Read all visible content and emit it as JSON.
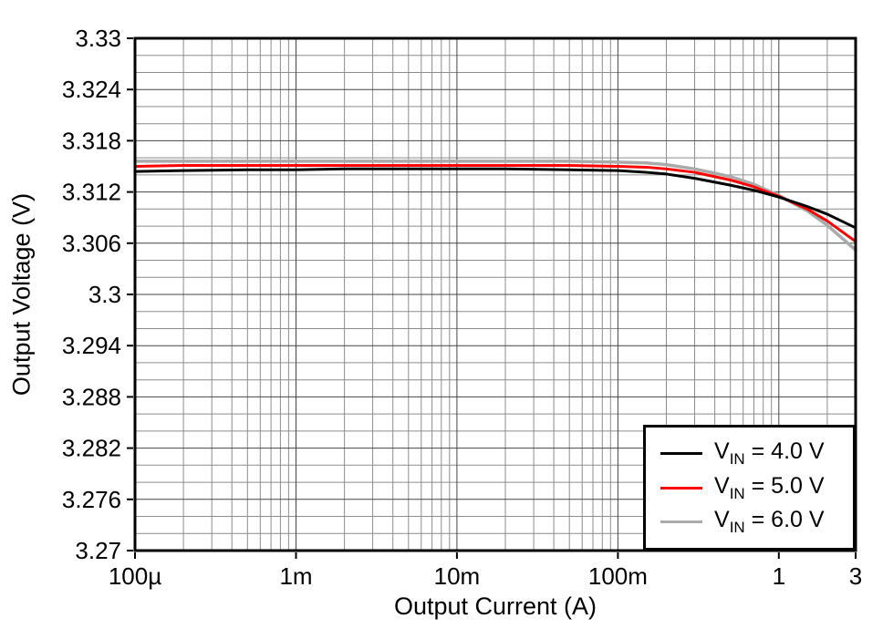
{
  "chart_data": {
    "type": "line",
    "xlabel": "Output Current (A)",
    "ylabel": "Output Voltage (V)",
    "x_scale": "log",
    "xlim": [
      0.0001,
      3
    ],
    "ylim": [
      3.27,
      3.33
    ],
    "grid": true,
    "legend_position": "bottom-right",
    "x_ticks": [
      0.0001,
      0.001,
      0.01,
      0.1,
      1,
      3
    ],
    "x_tick_labels": [
      "100µ",
      "1m",
      "10m",
      "100m",
      "1",
      "3"
    ],
    "y_ticks": [
      3.27,
      3.276,
      3.282,
      3.288,
      3.294,
      3.3,
      3.306,
      3.312,
      3.318,
      3.324,
      3.33
    ],
    "y_tick_labels": [
      "3.27",
      "3.276",
      "3.282",
      "3.288",
      "3.294",
      "3.3",
      "3.306",
      "3.312",
      "3.318",
      "3.324",
      "3.33"
    ],
    "y_minor_step": 0.002,
    "x": [
      0.0001,
      0.0002,
      0.0005,
      0.001,
      0.002,
      0.005,
      0.01,
      0.02,
      0.05,
      0.1,
      0.15,
      0.2,
      0.3,
      0.5,
      0.7,
      1.0,
      1.5,
      2.0,
      3.0
    ],
    "series": [
      {
        "name": "VIN = 4.0 V",
        "label_main": "V",
        "label_sub": "IN",
        "label_rest": " = 4.0 V",
        "color": "#000000",
        "width": 3,
        "y": [
          3.3144,
          3.3145,
          3.3146,
          3.3146,
          3.3147,
          3.3147,
          3.3147,
          3.3147,
          3.3146,
          3.3145,
          3.3143,
          3.3141,
          3.3136,
          3.3128,
          3.3122,
          3.3114,
          3.3103,
          3.3094,
          3.3078
        ]
      },
      {
        "name": "VIN = 5.0 V",
        "label_main": "V",
        "label_sub": "IN",
        "label_rest": " = 5.0 V",
        "color": "#ff0000",
        "width": 3,
        "y": [
          3.315,
          3.3151,
          3.3151,
          3.3151,
          3.3151,
          3.3151,
          3.3151,
          3.3151,
          3.3151,
          3.315,
          3.3149,
          3.3147,
          3.3143,
          3.3134,
          3.3126,
          3.3115,
          3.31,
          3.3086,
          3.3062
        ]
      },
      {
        "name": "VIN = 6.0 V",
        "label_main": "V",
        "label_sub": "IN",
        "label_rest": " = 6.0 V",
        "color": "#aaaaaa",
        "width": 3.5,
        "y": [
          3.3156,
          3.3156,
          3.3156,
          3.3156,
          3.3156,
          3.3156,
          3.3156,
          3.3156,
          3.3156,
          3.3155,
          3.3154,
          3.3152,
          3.3147,
          3.3138,
          3.3129,
          3.3116,
          3.3098,
          3.3081,
          3.3052
        ]
      }
    ]
  }
}
